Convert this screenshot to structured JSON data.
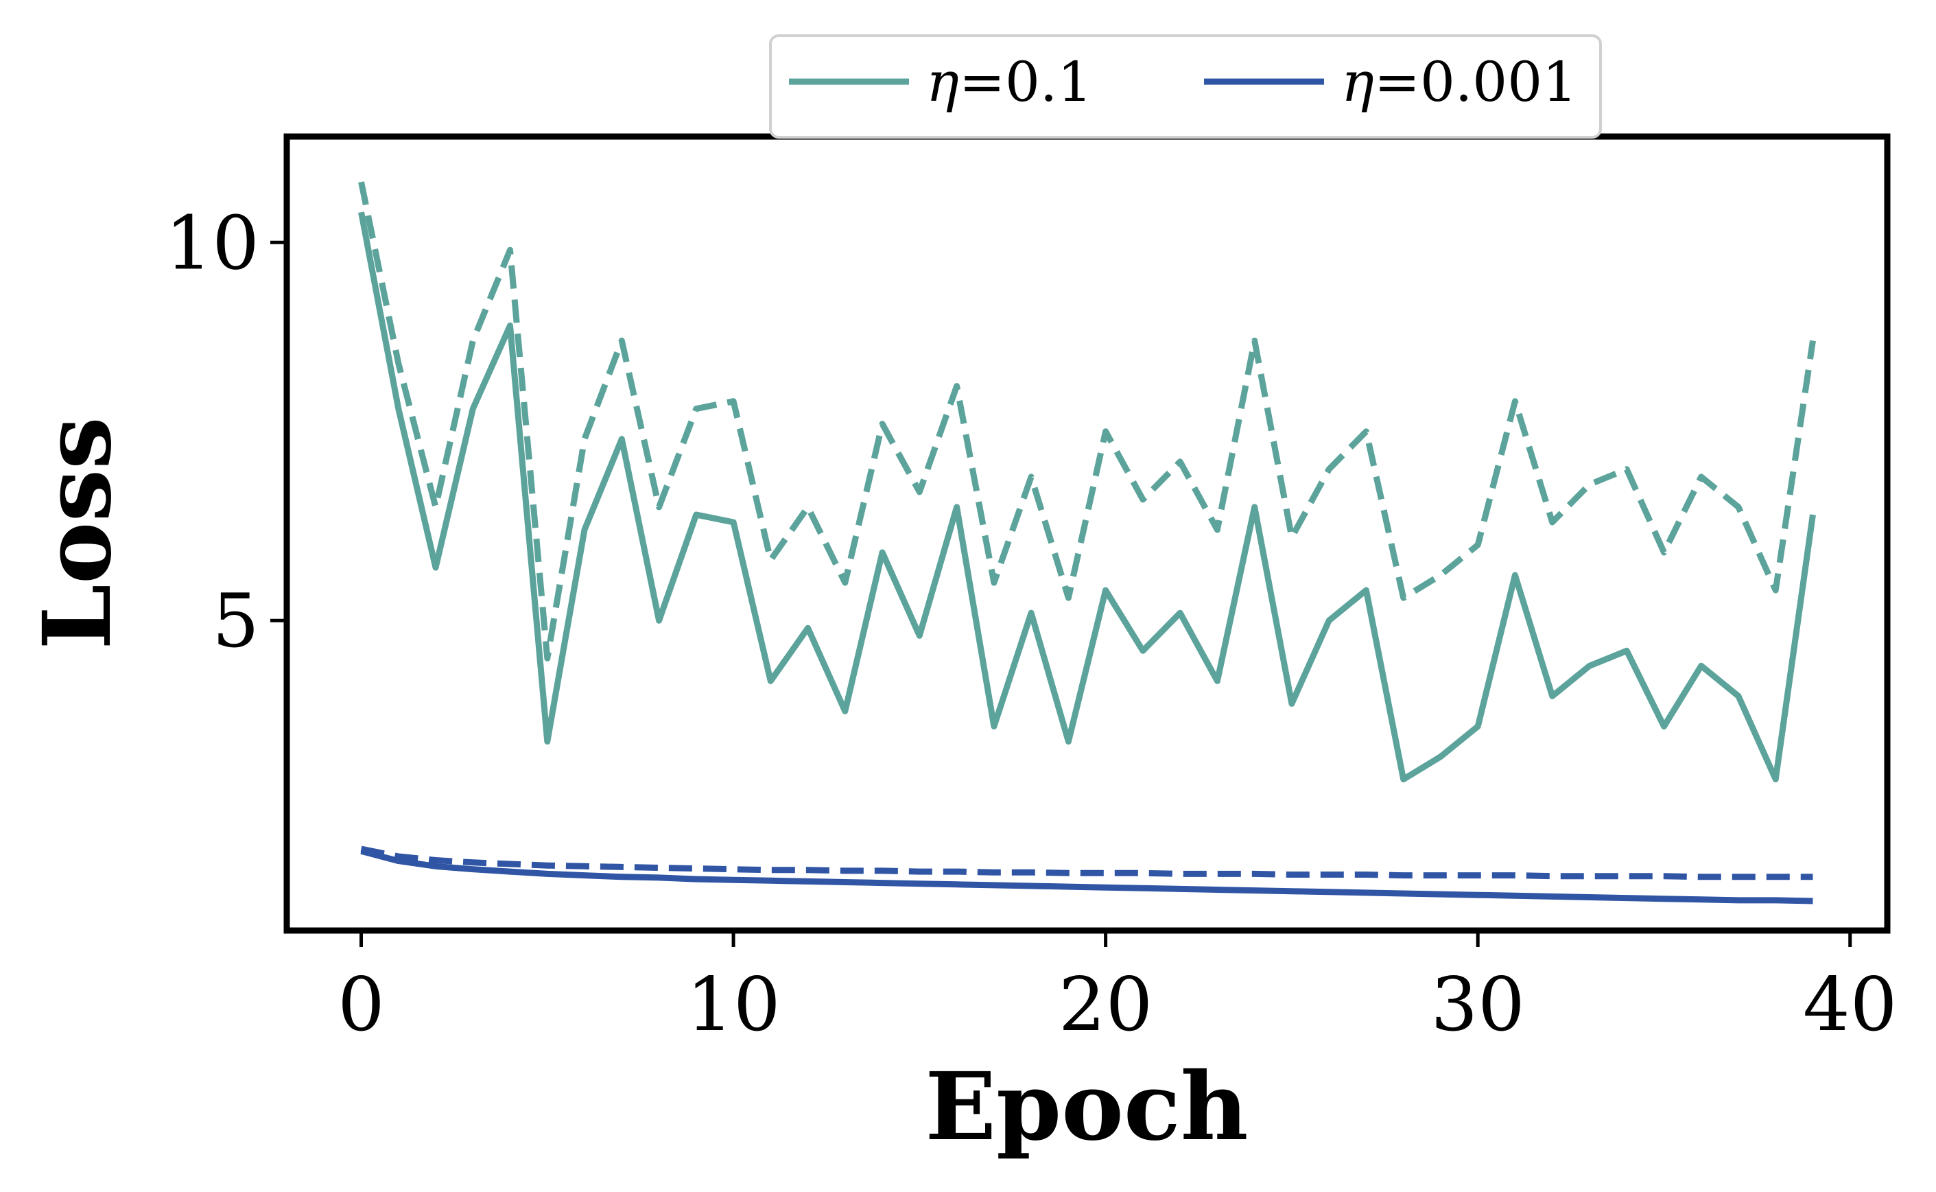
{
  "chart_data": {
    "type": "line",
    "title": "",
    "xlabel": "Epoch",
    "ylabel": "Loss",
    "xlim": [
      -2,
      41
    ],
    "ylim": [
      0.9,
      11.4
    ],
    "xticks": [
      0,
      10,
      20,
      30,
      40
    ],
    "yticks": [
      5,
      10
    ],
    "grid": false,
    "legend_position": "top-center, outside above axes",
    "x": [
      0,
      1,
      2,
      3,
      4,
      5,
      6,
      7,
      8,
      9,
      10,
      11,
      12,
      13,
      14,
      15,
      16,
      17,
      18,
      19,
      20,
      21,
      22,
      23,
      24,
      25,
      26,
      27,
      28,
      29,
      30,
      31,
      32,
      33,
      34,
      35,
      36,
      37,
      38,
      39
    ],
    "legend": [
      {
        "label_symbol": "η",
        "label_value": "=0.1",
        "color": "#5ba39b"
      },
      {
        "label_symbol": "η",
        "label_value": "=0.001",
        "color": "#2f55a4"
      }
    ],
    "series": [
      {
        "learning_rate": "0.1",
        "style": "solid",
        "color": "#5ba39b",
        "values": [
          10.4,
          7.8,
          5.7,
          7.8,
          8.9,
          3.4,
          6.2,
          7.4,
          5.0,
          6.4,
          6.3,
          4.2,
          4.9,
          3.8,
          5.9,
          4.8,
          6.5,
          3.6,
          5.1,
          3.4,
          5.4,
          4.6,
          5.1,
          4.2,
          6.5,
          3.9,
          5.0,
          5.4,
          2.9,
          3.2,
          3.6,
          5.6,
          4.0,
          4.4,
          4.6,
          3.6,
          4.4,
          4.0,
          2.9,
          6.4
        ]
      },
      {
        "learning_rate": "0.1",
        "style": "dashed",
        "color": "#5ba39b",
        "values": [
          10.8,
          8.4,
          6.5,
          8.7,
          9.9,
          4.5,
          7.4,
          8.7,
          6.5,
          7.8,
          7.9,
          5.8,
          6.5,
          5.5,
          7.6,
          6.7,
          8.1,
          5.5,
          6.9,
          5.3,
          7.5,
          6.6,
          7.1,
          6.2,
          8.7,
          6.1,
          7.0,
          7.5,
          5.3,
          5.6,
          6.0,
          7.9,
          6.3,
          6.8,
          7.0,
          5.9,
          6.9,
          6.5,
          5.4,
          8.7
        ]
      },
      {
        "learning_rate": "0.001",
        "style": "solid",
        "color": "#2f55a4",
        "values": [
          1.95,
          1.82,
          1.75,
          1.71,
          1.68,
          1.65,
          1.63,
          1.61,
          1.6,
          1.58,
          1.57,
          1.56,
          1.55,
          1.54,
          1.53,
          1.52,
          1.51,
          1.5,
          1.49,
          1.48,
          1.47,
          1.46,
          1.45,
          1.44,
          1.43,
          1.42,
          1.41,
          1.4,
          1.39,
          1.38,
          1.37,
          1.36,
          1.35,
          1.34,
          1.33,
          1.32,
          1.31,
          1.3,
          1.3,
          1.29
        ]
      },
      {
        "learning_rate": "0.001",
        "style": "dashed",
        "color": "#2f55a4",
        "values": [
          1.98,
          1.88,
          1.83,
          1.8,
          1.78,
          1.76,
          1.75,
          1.74,
          1.73,
          1.72,
          1.71,
          1.7,
          1.7,
          1.69,
          1.69,
          1.68,
          1.68,
          1.67,
          1.67,
          1.66,
          1.66,
          1.66,
          1.65,
          1.65,
          1.65,
          1.64,
          1.64,
          1.64,
          1.63,
          1.63,
          1.63,
          1.63,
          1.62,
          1.62,
          1.62,
          1.62,
          1.61,
          1.61,
          1.61,
          1.61
        ]
      }
    ]
  }
}
